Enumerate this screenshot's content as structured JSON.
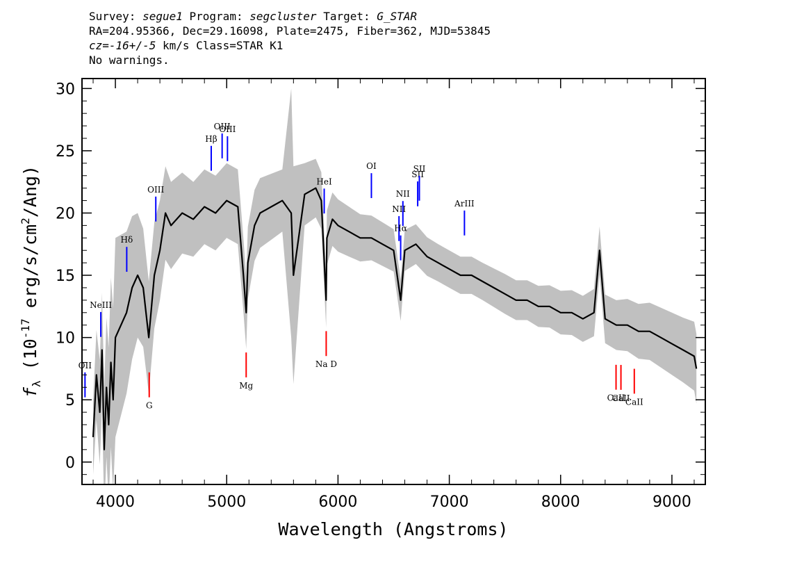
{
  "header": {
    "survey_label": "Survey:",
    "survey": "segue1",
    "program_label": "Program:",
    "program": "segcluster",
    "target_label": "Target:",
    "target": "G_STAR",
    "line2": "RA=204.95366, Dec=29.16098, Plate=2475, Fiber=362, MJD=53845",
    "cz_label": "cz=",
    "cz_value": "-16+/-5",
    "cz_rest": " km/s Class=STAR K1",
    "warnings": "No warnings."
  },
  "chart_data": {
    "type": "line",
    "xlabel": "Wavelength (Angstroms)",
    "ylabel_prefix": "f",
    "ylabel_sub": "λ",
    "ylabel_main": " (10",
    "ylabel_exp": "-17",
    "ylabel_units": " erg/s/cm",
    "ylabel_units_exp": "2",
    "ylabel_tail": "/Ang)",
    "xlim": [
      3700,
      9300
    ],
    "ylim": [
      -1.8,
      30.8
    ],
    "x_ticks": [
      4000,
      5000,
      6000,
      7000,
      8000,
      9000
    ],
    "x_tick_labels": [
      "4000",
      "5000",
      "6000",
      "7000",
      "8000",
      "9000"
    ],
    "y_ticks": [
      0,
      5,
      10,
      15,
      20,
      25,
      30
    ],
    "y_tick_labels": [
      "0",
      "5",
      "10",
      "15",
      "20",
      "25",
      "30"
    ],
    "grid": false,
    "series": [
      {
        "role": "flux",
        "color": "#000000",
        "x": [
          3800,
          3830,
          3860,
          3880,
          3900,
          3920,
          3940,
          3960,
          3980,
          4000,
          4050,
          4100,
          4150,
          4200,
          4250,
          4300,
          4350,
          4400,
          4450,
          4500,
          4600,
          4700,
          4800,
          4900,
          5000,
          5100,
          5150,
          5175,
          5190,
          5250,
          5300,
          5400,
          5500,
          5580,
          5600,
          5700,
          5800,
          5850,
          5893,
          5900,
          5950,
          6000,
          6100,
          6200,
          6300,
          6400,
          6500,
          6563,
          6600,
          6700,
          6800,
          6900,
          7000,
          7100,
          7200,
          7300,
          7400,
          7500,
          7600,
          7700,
          7800,
          7900,
          8000,
          8100,
          8200,
          8300,
          8350,
          8400,
          8500,
          8600,
          8700,
          8800,
          8900,
          9000,
          9100,
          9200,
          9220
        ],
        "y": [
          2,
          7,
          4,
          9,
          1,
          6,
          3,
          8,
          5,
          10,
          11,
          12,
          14,
          15,
          14,
          10,
          15,
          17,
          20,
          19,
          20,
          19.5,
          20.5,
          20,
          21,
          20.5,
          15,
          12,
          16,
          19,
          20,
          20.5,
          21,
          20,
          15,
          21.5,
          22,
          21,
          13,
          18,
          19.5,
          19,
          18.5,
          18,
          18,
          17.5,
          17,
          13,
          17,
          17.5,
          16.5,
          16,
          15.5,
          15,
          15,
          14.5,
          14,
          13.5,
          13,
          13,
          12.5,
          12.5,
          12,
          12,
          11.5,
          12,
          17,
          11.5,
          11,
          11,
          10.5,
          10.5,
          10,
          9.5,
          9,
          8.5,
          7.5
        ]
      },
      {
        "role": "error",
        "color": "#c0c0c0",
        "x": [
          3800,
          3900,
          4000,
          4200,
          4400,
          4500,
          4700,
          4900,
          5100,
          5300,
          5500,
          5580,
          5700,
          5900,
          6100,
          6300,
          6500,
          6700,
          6900,
          7100,
          7300,
          7500,
          7700,
          7900,
          8100,
          8300,
          8500,
          8700,
          8900,
          9100,
          9220
        ],
        "y": [
          3,
          5,
          8,
          5,
          4,
          3.5,
          3,
          3,
          3,
          2.8,
          2.5,
          10,
          2.5,
          2.2,
          2,
          1.8,
          1.7,
          1.6,
          1.5,
          1.5,
          1.5,
          1.6,
          1.6,
          1.7,
          1.8,
          1.9,
          2,
          2.2,
          2.4,
          2.6,
          2.8
        ]
      }
    ],
    "emission_lines": [
      {
        "label": "OII",
        "wavelength": 3727
      },
      {
        "label": "NeIII",
        "wavelength": 3869
      },
      {
        "label": "Hδ",
        "wavelength": 4102
      },
      {
        "label": "OIII",
        "wavelength": 4363
      },
      {
        "label": "Hβ",
        "wavelength": 4861
      },
      {
        "label": "OIII",
        "wavelength": 4959
      },
      {
        "label": "OIII",
        "wavelength": 5007
      },
      {
        "label": "HeI",
        "wavelength": 5876
      },
      {
        "label": "OI",
        "wavelength": 6300
      },
      {
        "label": "NII",
        "wavelength": 6548
      },
      {
        "label": "Hα",
        "wavelength": 6563
      },
      {
        "label": "NII",
        "wavelength": 6583
      },
      {
        "label": "SII",
        "wavelength": 6716
      },
      {
        "label": "SII",
        "wavelength": 6731
      },
      {
        "label": "ArIII",
        "wavelength": 7136
      }
    ],
    "absorption_lines": [
      {
        "label": "G",
        "wavelength": 4304
      },
      {
        "label": "Mg",
        "wavelength": 5175
      },
      {
        "label": "Na D",
        "wavelength": 5894
      },
      {
        "label": "CaII",
        "wavelength": 8498
      },
      {
        "label": "CaII",
        "wavelength": 8542
      },
      {
        "label": "CaII",
        "wavelength": 8662
      }
    ],
    "emission_color": "#0000ff",
    "absorption_color": "#ff0000"
  }
}
